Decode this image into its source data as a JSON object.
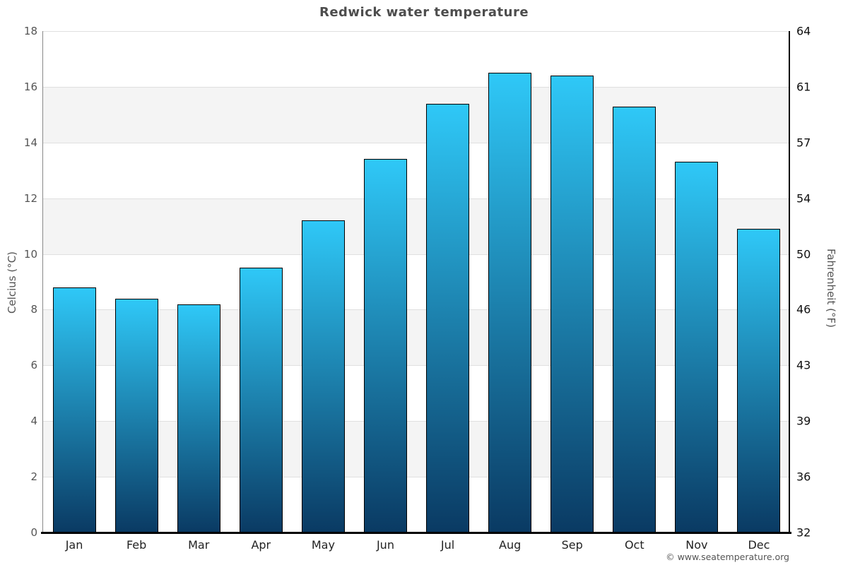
{
  "title": "Redwick water temperature",
  "watermark": "© www.seatemperature.org",
  "chart_data": {
    "type": "bar",
    "title": "Redwick water temperature",
    "categories": [
      "Jan",
      "Feb",
      "Mar",
      "Apr",
      "May",
      "Jun",
      "Jul",
      "Aug",
      "Sep",
      "Oct",
      "Nov",
      "Dec"
    ],
    "values": [
      8.8,
      8.4,
      8.2,
      9.5,
      11.2,
      13.4,
      15.4,
      16.5,
      16.4,
      15.3,
      13.3,
      10.9
    ],
    "ylabel": "Celcius (°C)",
    "ylabel_right": "Fahrenheit (°F)",
    "ylim": [
      0,
      18
    ],
    "yticks_celsius": [
      0,
      2,
      4,
      6,
      8,
      10,
      12,
      14,
      16,
      18
    ],
    "yticks_fahrenheit": [
      32,
      36,
      39,
      43,
      46,
      50,
      54,
      57,
      61,
      64
    ],
    "grid": true,
    "legend_position": "none",
    "colors": {
      "bar_gradient_top": "#2fc8f7",
      "bar_gradient_bottom": "#0a3a63",
      "bar_border": "#000000",
      "band_gray": "#f4f4f4",
      "gridline": "#e0e0e0",
      "left_axis_line": "#888888",
      "right_axis_line": "#000000",
      "title_text": "#4d4d4d",
      "left_tick_text": "#555555",
      "right_tick_text": "#111111",
      "month_text": "#222222"
    }
  }
}
